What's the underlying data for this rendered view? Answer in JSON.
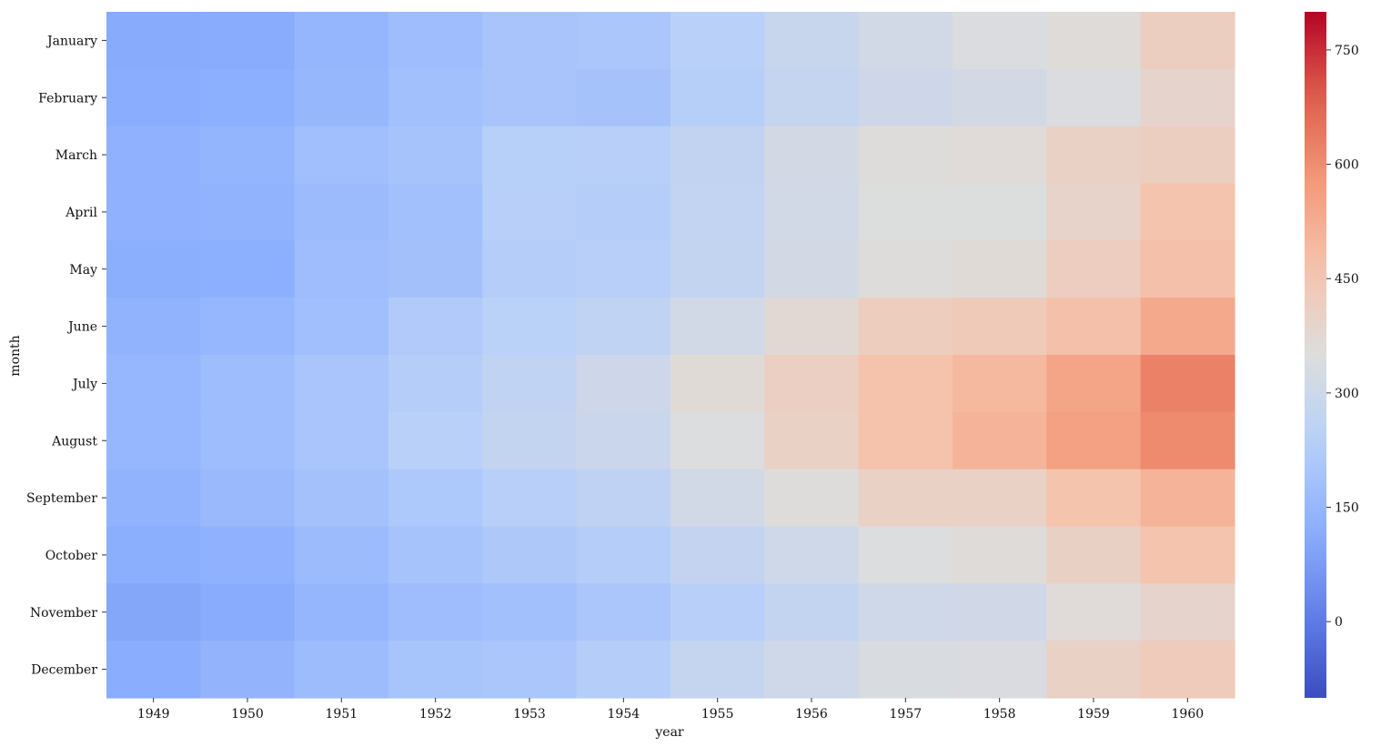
{
  "chart_data": {
    "type": "heatmap",
    "title": "",
    "xlabel": "year",
    "ylabel": "month",
    "x": [
      "1949",
      "1950",
      "1951",
      "1952",
      "1953",
      "1954",
      "1955",
      "1956",
      "1957",
      "1958",
      "1959",
      "1960"
    ],
    "y": [
      "January",
      "February",
      "March",
      "April",
      "May",
      "June",
      "July",
      "August",
      "September",
      "October",
      "November",
      "December"
    ],
    "values": [
      [
        112,
        115,
        145,
        171,
        196,
        204,
        242,
        284,
        315,
        340,
        360,
        417
      ],
      [
        118,
        126,
        150,
        180,
        196,
        188,
        233,
        277,
        301,
        318,
        342,
        391
      ],
      [
        132,
        141,
        178,
        193,
        236,
        235,
        267,
        317,
        356,
        362,
        406,
        419
      ],
      [
        129,
        135,
        163,
        181,
        235,
        227,
        269,
        313,
        348,
        348,
        396,
        461
      ],
      [
        121,
        125,
        172,
        183,
        229,
        234,
        270,
        318,
        355,
        363,
        420,
        472
      ],
      [
        135,
        149,
        178,
        218,
        243,
        264,
        315,
        374,
        422,
        435,
        472,
        535
      ],
      [
        148,
        170,
        199,
        230,
        264,
        302,
        364,
        413,
        465,
        491,
        548,
        622
      ],
      [
        148,
        170,
        199,
        242,
        272,
        293,
        347,
        405,
        467,
        505,
        559,
        606
      ],
      [
        136,
        158,
        184,
        209,
        237,
        259,
        312,
        355,
        404,
        404,
        463,
        508
      ],
      [
        119,
        133,
        162,
        191,
        211,
        229,
        274,
        306,
        347,
        359,
        407,
        461
      ],
      [
        104,
        114,
        146,
        172,
        180,
        203,
        237,
        271,
        305,
        310,
        362,
        390
      ],
      [
        118,
        140,
        166,
        194,
        201,
        229,
        278,
        306,
        336,
        337,
        405,
        432
      ]
    ],
    "colormap": "coolwarm",
    "vmin": -100,
    "vmax": 800,
    "colorbar": {
      "ticks": [
        0,
        150,
        300,
        450,
        600,
        750
      ]
    },
    "grid": false,
    "legend": "colorbar-right"
  }
}
